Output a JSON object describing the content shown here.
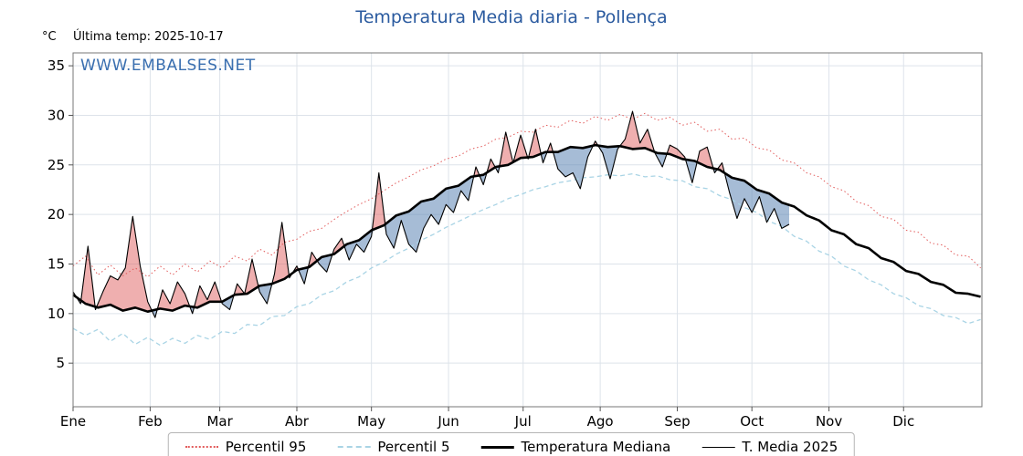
{
  "header": {
    "title": "Temperatura Media diaria - Pollença",
    "unit_label": "°C",
    "last_temp_label": "Última temp: 2025-10-17",
    "watermark": "WWW.EMBALSES.NET"
  },
  "colors": {
    "title_blue": "#2a5a9f",
    "watermark_blue": "#3a6fb0",
    "p95_red": "#e25b5b",
    "p5_blue": "#a9d4e5",
    "median_black": "#000000",
    "fill_above": "rgba(224,96,96,0.5)",
    "fill_below": "rgba(93,133,181,0.55)",
    "grid": "#dde3ea",
    "border": "#777777"
  },
  "chart_data": {
    "type": "line",
    "title": "Temperatura Media diaria - Pollença",
    "ylabel": "°C",
    "x_unit": "day_of_year",
    "ylim": [
      0.6,
      36.3
    ],
    "y_ticks": [
      5,
      10,
      15,
      20,
      25,
      30,
      35
    ],
    "month_labels": [
      "Ene",
      "Feb",
      "Mar",
      "Abr",
      "May",
      "Jun",
      "Jul",
      "Ago",
      "Sep",
      "Oct",
      "Nov",
      "Dic"
    ],
    "month_start_days": [
      0,
      31,
      59,
      90,
      120,
      151,
      181,
      212,
      243,
      273,
      304,
      334
    ],
    "legend": [
      "Percentil 95",
      "Percentil 5",
      "Temperatura Mediana",
      "T. Media 2025"
    ],
    "series": [
      {
        "name": "Percentil 95",
        "style": "dotted",
        "color": "#e25b5b",
        "x_step": 5,
        "values": [
          14.8,
          15.8,
          13.9,
          14.9,
          13.8,
          14.6,
          13.7,
          14.8,
          13.9,
          15.0,
          14.2,
          15.3,
          14.6,
          15.8,
          15.3,
          16.5,
          15.9,
          17.2,
          17.5,
          18.3,
          18.6,
          19.5,
          20.3,
          21.0,
          21.6,
          22.4,
          23.2,
          23.8,
          24.5,
          24.9,
          25.6,
          25.9,
          26.6,
          26.9,
          27.6,
          27.8,
          28.4,
          28.3,
          29.0,
          28.8,
          29.5,
          29.2,
          29.9,
          29.5,
          30.1,
          29.6,
          30.2,
          29.5,
          29.8,
          29.0,
          29.3,
          28.4,
          28.6,
          27.6,
          27.7,
          26.7,
          26.5,
          25.5,
          25.2,
          24.2,
          23.8,
          22.8,
          22.4,
          21.3,
          20.9,
          19.8,
          19.5,
          18.4,
          18.2,
          17.1,
          16.9,
          15.9,
          15.8,
          14.6
        ]
      },
      {
        "name": "Percentil 5",
        "style": "dashed",
        "color": "#a9d4e5",
        "x_step": 5,
        "values": [
          8.5,
          7.8,
          8.4,
          7.2,
          8.0,
          6.9,
          7.6,
          6.8,
          7.5,
          7.0,
          7.8,
          7.4,
          8.2,
          8.0,
          8.9,
          8.8,
          9.7,
          9.8,
          10.7,
          11.0,
          11.9,
          12.3,
          13.2,
          13.7,
          14.6,
          15.2,
          16.0,
          16.6,
          17.4,
          18.0,
          18.7,
          19.3,
          19.9,
          20.5,
          21.0,
          21.6,
          22.0,
          22.5,
          22.8,
          23.2,
          23.4,
          23.7,
          23.8,
          24.0,
          23.9,
          24.1,
          23.8,
          23.9,
          23.5,
          23.4,
          22.8,
          22.6,
          21.9,
          21.5,
          20.7,
          20.2,
          19.3,
          18.8,
          17.8,
          17.3,
          16.3,
          15.8,
          14.8,
          14.3,
          13.4,
          12.9,
          12.0,
          11.6,
          10.8,
          10.5,
          9.8,
          9.6,
          9.0,
          9.4
        ]
      },
      {
        "name": "Temperatura Mediana",
        "style": "solid-thick",
        "color": "#000000",
        "x_step": 5,
        "values": [
          11.9,
          11.0,
          10.6,
          10.9,
          10.3,
          10.6,
          10.2,
          10.5,
          10.3,
          10.8,
          10.6,
          11.2,
          11.2,
          11.9,
          12.0,
          12.8,
          13.0,
          13.5,
          14.4,
          14.7,
          15.7,
          16.0,
          17.0,
          17.4,
          18.4,
          18.9,
          19.9,
          20.3,
          21.3,
          21.6,
          22.6,
          22.9,
          23.8,
          24.0,
          24.8,
          25.0,
          25.7,
          25.8,
          26.3,
          26.3,
          26.8,
          26.7,
          27.0,
          26.8,
          26.9,
          26.6,
          26.7,
          26.2,
          26.1,
          25.6,
          25.4,
          24.8,
          24.5,
          23.7,
          23.4,
          22.5,
          22.1,
          21.2,
          20.8,
          19.9,
          19.4,
          18.4,
          18.0,
          17.0,
          16.6,
          15.6,
          15.2,
          14.3,
          14.0,
          13.2,
          12.9,
          12.1,
          12.0,
          11.7
        ]
      },
      {
        "name": "T. Media 2025",
        "style": "solid-thin",
        "color": "#000000",
        "x_step": 3,
        "values": [
          12.2,
          11.0,
          16.8,
          10.4,
          12.2,
          13.8,
          13.4,
          14.6,
          19.8,
          14.8,
          11.2,
          9.6,
          12.4,
          11.0,
          13.2,
          12.0,
          10.0,
          12.8,
          11.4,
          13.2,
          11.0,
          10.4,
          13.0,
          12.0,
          15.5,
          12.2,
          11.0,
          14.0,
          19.2,
          13.6,
          14.8,
          13.0,
          16.2,
          15.0,
          14.2,
          16.5,
          17.6,
          15.4,
          17.0,
          16.2,
          17.8,
          24.2,
          18.0,
          16.6,
          19.4,
          17.0,
          16.2,
          18.6,
          20.0,
          19.0,
          21.0,
          20.2,
          22.4,
          21.4,
          24.8,
          23.0,
          25.6,
          24.2,
          28.3,
          25.2,
          28.0,
          25.6,
          28.6,
          25.2,
          27.2,
          24.6,
          23.8,
          24.2,
          22.6,
          25.8,
          27.4,
          26.2,
          23.6,
          26.6,
          27.6,
          30.4,
          27.2,
          28.6,
          26.2,
          24.8,
          27.0,
          26.6,
          25.8,
          23.2,
          26.4,
          26.8,
          24.2,
          25.2,
          22.2,
          19.6,
          21.6,
          20.2,
          21.8,
          19.2,
          20.6,
          18.6,
          19.0
        ]
      }
    ],
    "fills": {
      "above_median_color": "rgba(224,96,96,0.5)",
      "below_median_color": "rgba(93,133,181,0.55)"
    }
  }
}
